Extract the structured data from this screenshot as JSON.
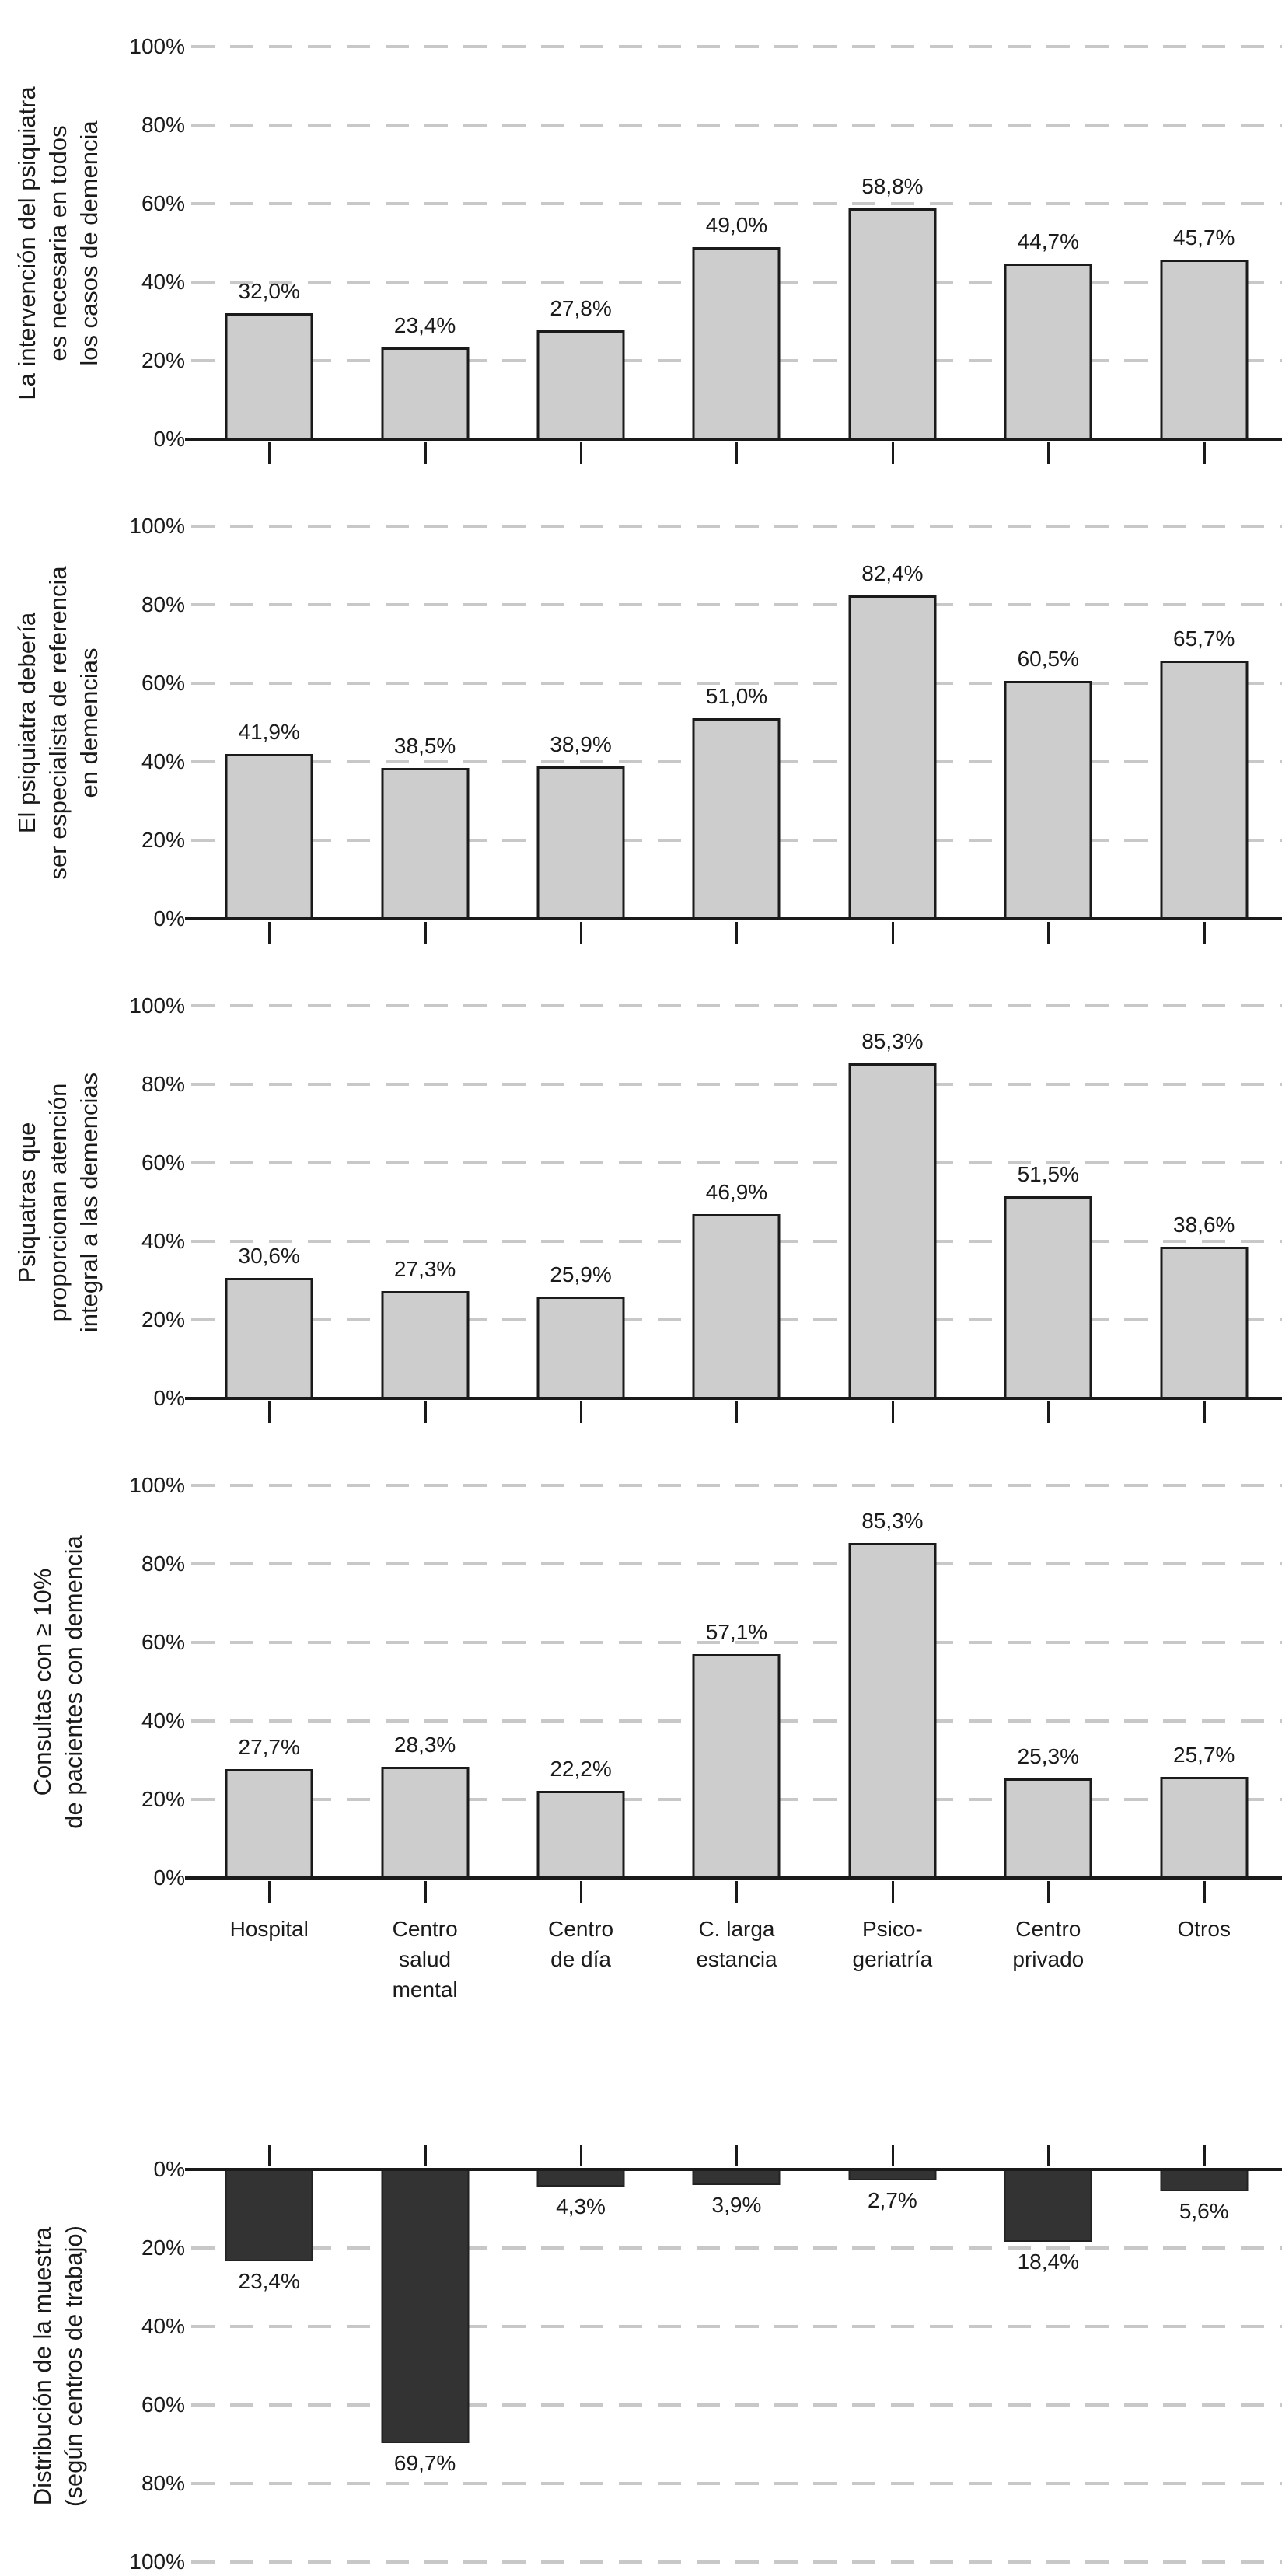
{
  "figure_name": "Encuesta psiquiatras y demencia — graficos de barras por centro de trabajo",
  "colors": {
    "bar_light": "#cdcdcd",
    "bar_dark": "#333333",
    "bar_border": "#1a1a1a",
    "grid": "#c8c8c8",
    "axis": "#1a1a1a",
    "text": "#1a1a1a",
    "background": "#ffffff"
  },
  "chart_data": {
    "type": "bar",
    "categories": [
      "Hospital",
      "Centro salud mental",
      "Centro de día",
      "C. larga estancia",
      "Psico-geriatría",
      "Centro privado",
      "Otros"
    ],
    "category_label_lines": [
      [
        "Hospital"
      ],
      [
        "Centro",
        "salud",
        "mental"
      ],
      [
        "Centro",
        "de día"
      ],
      [
        "C. larga",
        "estancia"
      ],
      [
        "Psico-",
        "geriatría"
      ],
      [
        "Centro",
        "privado"
      ],
      [
        "Otros"
      ]
    ],
    "y_axis": {
      "range": [
        0,
        100
      ],
      "ticks": [
        0,
        20,
        40,
        60,
        80,
        100
      ],
      "tick_label_format": "percent",
      "grid": "dashed"
    },
    "panels": [
      {
        "title": "La intervención del psiquiatra es necesaria en todos los casos de demencia",
        "title_lines": [
          "La intervención del psiquiatra",
          "es necesaria en todos",
          "los casos de demencia"
        ],
        "orientation": "up",
        "bar_style": "light",
        "values": [
          32.0,
          23.4,
          27.8,
          49.0,
          58.8,
          44.7,
          45.7
        ],
        "value_labels": [
          "32,0%",
          "23,4%",
          "27,8%",
          "49,0%",
          "58,8%",
          "44,7%",
          "45,7%"
        ]
      },
      {
        "title": "El psiquiatra debería ser especialista de referencia en demencias",
        "title_lines": [
          "El psiquiatra debería",
          "ser especialista de referencia",
          "en demencias"
        ],
        "orientation": "up",
        "bar_style": "light",
        "values": [
          41.9,
          38.5,
          38.9,
          51.0,
          82.4,
          60.5,
          65.7
        ],
        "value_labels": [
          "41,9%",
          "38,5%",
          "38,9%",
          "51,0%",
          "82,4%",
          "60,5%",
          "65,7%"
        ]
      },
      {
        "title": "Psiquatras que proporcionan atención integral a las demencias",
        "title_lines": [
          "Psiquatras que",
          "proporcionan atención",
          "integral a las demencias"
        ],
        "orientation": "up",
        "bar_style": "light",
        "values": [
          30.6,
          27.3,
          25.9,
          46.9,
          85.3,
          51.5,
          38.6
        ],
        "value_labels": [
          "30,6%",
          "27,3%",
          "25,9%",
          "46,9%",
          "85,3%",
          "51,5%",
          "38,6%"
        ]
      },
      {
        "title": "Consultas con ≥ 10% de pacientes con demencia",
        "title_lines": [
          "Consultas con ≥ 10%",
          "de pacientes con demencia"
        ],
        "orientation": "up",
        "bar_style": "light",
        "values": [
          27.7,
          28.3,
          22.2,
          57.1,
          85.3,
          25.3,
          25.7
        ],
        "value_labels": [
          "27,7%",
          "28,3%",
          "22,2%",
          "57,1%",
          "85,3%",
          "25,3%",
          "25,7%"
        ]
      },
      {
        "title": "Distribución de la muestra (según centros de trabajo)",
        "title_lines": [
          "Distribución de la muestra",
          "(según centros de trabajo)"
        ],
        "orientation": "down",
        "bar_style": "dark",
        "values": [
          23.4,
          69.7,
          4.3,
          3.9,
          2.7,
          18.4,
          5.6
        ],
        "value_labels": [
          "23,4%",
          "69,7%",
          "4,3%",
          "3,9%",
          "2,7%",
          "18,4%",
          "5,6%"
        ]
      }
    ]
  }
}
